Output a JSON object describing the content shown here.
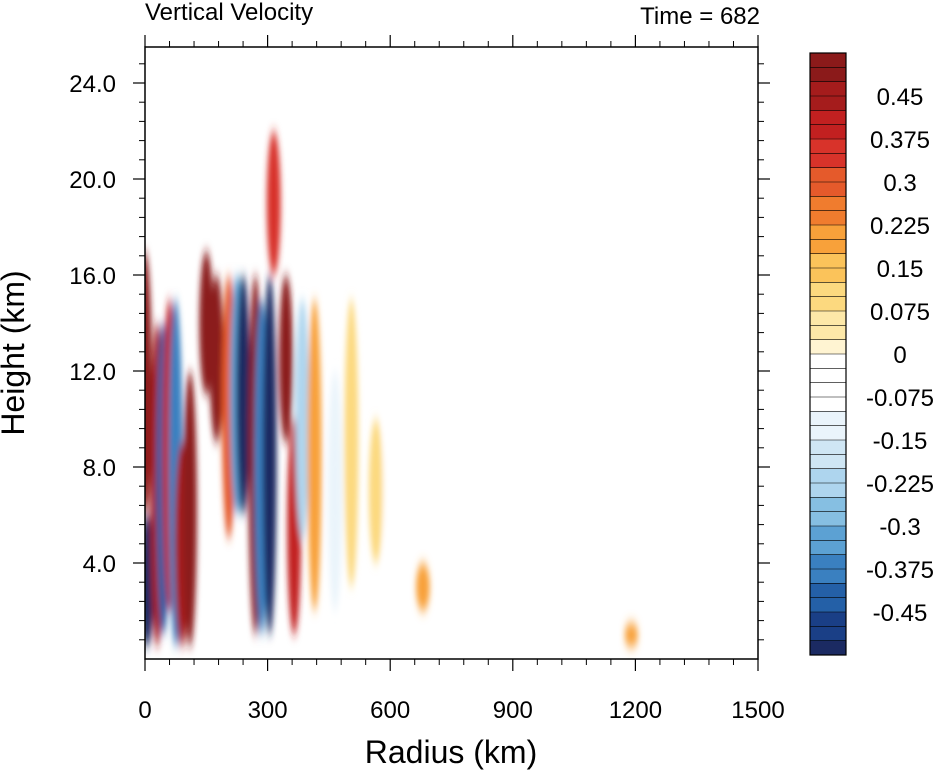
{
  "chart_data": {
    "type": "heatmap",
    "title": "Vertical Velocity",
    "subtitle": "Time = 682",
    "xlabel": "Radius (km)",
    "ylabel": "Height (km)",
    "xlim": [
      0,
      1500
    ],
    "ylim": [
      0,
      25.5
    ],
    "xticks": [
      0,
      300,
      600,
      900,
      1200,
      1500
    ],
    "xtick_labels": [
      "0",
      "300",
      "600",
      "900",
      "1200",
      "1500"
    ],
    "yticks": [
      4,
      8,
      12,
      16,
      20,
      24
    ],
    "ytick_labels": [
      "4.0",
      "8.0",
      "12.0",
      "16.0",
      "20.0",
      "24.0"
    ],
    "colorbar": {
      "labels": [
        "0.45",
        "0.375",
        "0.3",
        "0.225",
        "0.15",
        "0.075",
        "0",
        "-0.075",
        "-0.15",
        "-0.225",
        "-0.3",
        "-0.375",
        "-0.45"
      ],
      "level_min": -0.525,
      "level_max": 0.525,
      "level_step": 0.025,
      "colors_top_to_bottom": [
        "#8b1a1a",
        "#a51c1c",
        "#c22020",
        "#d8332a",
        "#e55a2b",
        "#f07c2e",
        "#f8a13a",
        "#fbc35a",
        "#fcd97f",
        "#fde8a8",
        "#fff4d2",
        "#ffffff",
        "#ffffff",
        "#eaf4fb",
        "#cfe6f4",
        "#aed5ee",
        "#86bfe2",
        "#5ca1d3",
        "#3a80c0",
        "#2460a7",
        "#1a3f86",
        "#1b2a62"
      ]
    },
    "features": [
      {
        "r": 0,
        "z0": 6,
        "z1": 17,
        "w": 0.5
      },
      {
        "r": 5,
        "z0": 0.5,
        "z1": 6,
        "w": -0.5
      },
      {
        "r": 30,
        "z0": 0.5,
        "z1": 14,
        "w": 0.45
      },
      {
        "r": 45,
        "z0": 1,
        "z1": 14,
        "w": -0.4
      },
      {
        "r": 60,
        "z0": 2,
        "z1": 15,
        "w": 0.4
      },
      {
        "r": 75,
        "z0": 0.5,
        "z1": 15,
        "w": -0.35
      },
      {
        "r": 90,
        "z0": 0.5,
        "z1": 9,
        "w": 0.45
      },
      {
        "r": 110,
        "z0": 0.5,
        "z1": 12,
        "w": 0.55
      },
      {
        "r": 150,
        "z0": 11,
        "z1": 17,
        "w": 0.6
      },
      {
        "r": 175,
        "z0": 9,
        "z1": 16,
        "w": 0.5
      },
      {
        "r": 205,
        "z0": 5,
        "z1": 16,
        "w": 0.3
      },
      {
        "r": 225,
        "z0": 6,
        "z1": 16,
        "w": -0.3
      },
      {
        "r": 240,
        "z0": 6,
        "z1": 16,
        "w": -0.5
      },
      {
        "r": 270,
        "z0": 1,
        "z1": 16,
        "w": 0.5
      },
      {
        "r": 285,
        "z0": 1,
        "z1": 15,
        "w": -0.35
      },
      {
        "r": 305,
        "z0": 1,
        "z1": 16,
        "w": -0.55
      },
      {
        "r": 315,
        "z0": 16,
        "z1": 22,
        "w": 0.35
      },
      {
        "r": 345,
        "z0": 9,
        "z1": 16,
        "w": 0.55
      },
      {
        "r": 365,
        "z0": 1,
        "z1": 10,
        "w": 0.4
      },
      {
        "r": 385,
        "z0": 5,
        "z1": 15,
        "w": -0.2
      },
      {
        "r": 415,
        "z0": 2,
        "z1": 15,
        "w": 0.2
      },
      {
        "r": 465,
        "z0": 2,
        "z1": 12,
        "w": -0.1
      },
      {
        "r": 505,
        "z0": 3,
        "z1": 15,
        "w": 0.1
      },
      {
        "r": 565,
        "z0": 4,
        "z1": 10,
        "w": 0.1
      },
      {
        "r": 600,
        "z0": 3,
        "z1": 11,
        "w": -0.075
      },
      {
        "r": 680,
        "z0": 2,
        "z1": 4,
        "w": 0.2
      },
      {
        "r": 1190,
        "z0": 0.5,
        "z1": 1.5,
        "w": 0.2
      }
    ]
  }
}
